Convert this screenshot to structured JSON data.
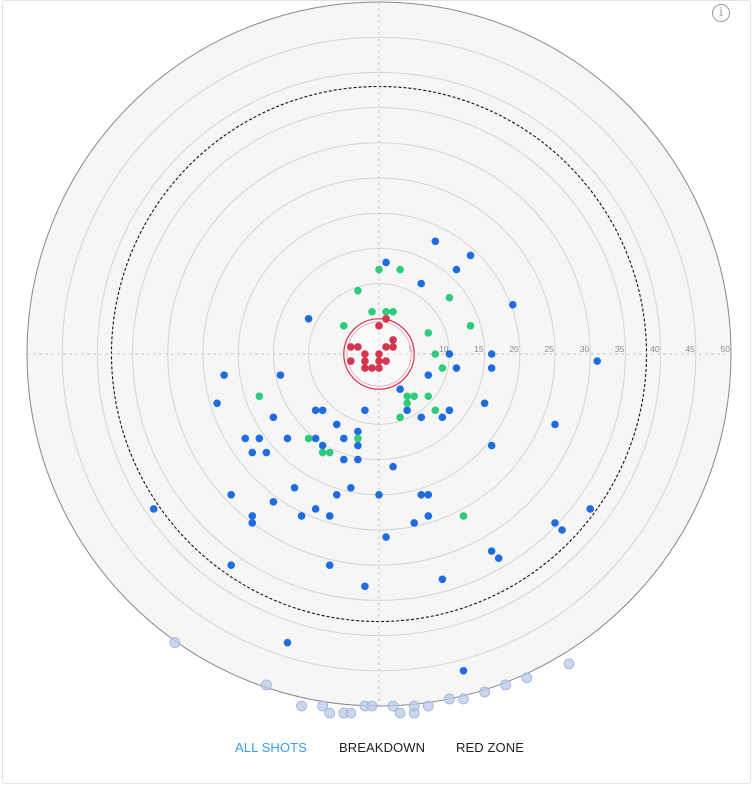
{
  "info_icon": "info-icon",
  "tabs": [
    {
      "label": "ALL SHOTS",
      "active": true
    },
    {
      "label": "BREAKDOWN",
      "active": false
    },
    {
      "label": "RED ZONE",
      "active": false
    }
  ],
  "colors": {
    "made": "#1f6ce0",
    "green": "#2ecc7a",
    "red": "#d8334f",
    "faded": "#b8c9e8",
    "rings": "#d4d4d4",
    "plate": "#f6f6f6",
    "active_tab": "#3c9ee5"
  },
  "chart_data": {
    "type": "scatter",
    "polar": true,
    "r_max": 50,
    "ring_ticks": [
      "5",
      "10",
      "15",
      "20",
      "25",
      "30",
      "35",
      "40",
      "45",
      "50"
    ],
    "dashed_ring_radius": 38,
    "red_zone_radius": 5,
    "series": [
      {
        "color_key": "red",
        "points": [
          [
            -4,
            -1
          ],
          [
            -3,
            -1
          ],
          [
            -2,
            0
          ],
          [
            -4,
            1
          ],
          [
            -2,
            1
          ],
          [
            0,
            0
          ],
          [
            0,
            1
          ],
          [
            1,
            -1
          ],
          [
            2,
            -1
          ],
          [
            2,
            -2
          ],
          [
            1,
            1
          ],
          [
            0,
            2
          ],
          [
            -1,
            2
          ],
          [
            -2,
            2
          ],
          [
            1,
            -5
          ],
          [
            0,
            -4
          ]
        ]
      },
      {
        "color_key": "green",
        "points": [
          [
            0,
            -12
          ],
          [
            3,
            -12
          ],
          [
            -3,
            -9
          ],
          [
            -1,
            -6
          ],
          [
            1,
            -6
          ],
          [
            2,
            -6
          ],
          [
            -5,
            -4
          ],
          [
            7,
            -3
          ],
          [
            10,
            -8
          ],
          [
            13,
            -4
          ],
          [
            8,
            0
          ],
          [
            9,
            2
          ],
          [
            4,
            7
          ],
          [
            7,
            6
          ],
          [
            5,
            6
          ],
          [
            3,
            9
          ],
          [
            8,
            8
          ],
          [
            -17,
            6
          ],
          [
            -10,
            12
          ],
          [
            -8,
            14
          ],
          [
            -7,
            14
          ],
          [
            -3,
            12
          ],
          [
            12,
            23
          ],
          [
            4,
            6
          ]
        ]
      },
      {
        "color_key": "made",
        "points": [
          [
            8,
            -16
          ],
          [
            13,
            -14
          ],
          [
            11,
            -12
          ],
          [
            1,
            -13
          ],
          [
            6,
            -10
          ],
          [
            19,
            -7
          ],
          [
            -10,
            -5
          ],
          [
            16,
            0
          ],
          [
            10,
            0
          ],
          [
            11,
            2
          ],
          [
            7,
            3
          ],
          [
            16,
            2
          ],
          [
            -14,
            3
          ],
          [
            -22,
            3
          ],
          [
            31,
            1
          ],
          [
            -23,
            7
          ],
          [
            3,
            5
          ],
          [
            -9,
            8
          ],
          [
            -8,
            8
          ],
          [
            -2,
            8
          ],
          [
            4,
            8
          ],
          [
            6,
            9
          ],
          [
            10,
            8
          ],
          [
            15,
            7
          ],
          [
            9,
            9
          ],
          [
            25,
            10
          ],
          [
            -15,
            9
          ],
          [
            -13,
            12
          ],
          [
            -6,
            10
          ],
          [
            -5,
            12
          ],
          [
            -3,
            11
          ],
          [
            -9,
            12
          ],
          [
            -8,
            13
          ],
          [
            -19,
            12
          ],
          [
            -17,
            12
          ],
          [
            -16,
            14
          ],
          [
            -18,
            14
          ],
          [
            -3,
            13
          ],
          [
            -5,
            15
          ],
          [
            -3,
            15
          ],
          [
            2,
            16
          ],
          [
            16,
            13
          ],
          [
            -12,
            19
          ],
          [
            -4,
            19
          ],
          [
            -6,
            20
          ],
          [
            -21,
            20
          ],
          [
            -15,
            21
          ],
          [
            -7,
            23
          ],
          [
            6,
            20
          ],
          [
            7,
            20
          ],
          [
            0,
            20
          ],
          [
            -18,
            23
          ],
          [
            -11,
            23
          ],
          [
            -9,
            22
          ],
          [
            -32,
            22
          ],
          [
            -18,
            24
          ],
          [
            5,
            24
          ],
          [
            7,
            23
          ],
          [
            25,
            24
          ],
          [
            26,
            25
          ],
          [
            30,
            22
          ],
          [
            1,
            26
          ],
          [
            16,
            28
          ],
          [
            17,
            29
          ],
          [
            -7,
            30
          ],
          [
            -21,
            30
          ],
          [
            9,
            32
          ],
          [
            -2,
            33
          ],
          [
            -13,
            41
          ],
          [
            12,
            45
          ]
        ]
      },
      {
        "color_key": "faded",
        "points": [
          [
            -29,
            41
          ],
          [
            -16,
            47
          ],
          [
            -11,
            50
          ],
          [
            -8,
            50
          ],
          [
            -7,
            51
          ],
          [
            -5,
            51
          ],
          [
            -4,
            51
          ],
          [
            -2,
            50
          ],
          [
            -1,
            50
          ],
          [
            2,
            50
          ],
          [
            3,
            51
          ],
          [
            5,
            51
          ],
          [
            5,
            50
          ],
          [
            7,
            50
          ],
          [
            10,
            49
          ],
          [
            12,
            49
          ],
          [
            15,
            48
          ],
          [
            18,
            47
          ],
          [
            21,
            46
          ],
          [
            27,
            44
          ]
        ]
      }
    ]
  }
}
